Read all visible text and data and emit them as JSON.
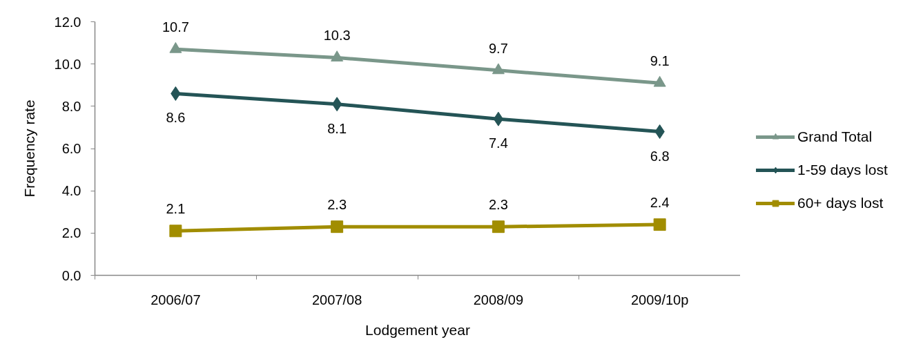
{
  "chart_data": {
    "type": "line",
    "xlabel": "Lodgement year",
    "ylabel": "Frequency rate",
    "categories": [
      "2006/07",
      "2007/08",
      "2008/09",
      "2009/10p"
    ],
    "series": [
      {
        "name": "Grand Total",
        "color": "#7a978a",
        "marker": "triangle",
        "values": [
          10.7,
          10.3,
          9.7,
          9.1
        ]
      },
      {
        "name": "1-59 days lost",
        "color": "#245456",
        "marker": "diamond",
        "values": [
          8.6,
          8.1,
          7.4,
          6.8
        ]
      },
      {
        "name": "60+ days lost",
        "color": "#a18d00",
        "marker": "square",
        "values": [
          2.1,
          2.3,
          2.3,
          2.4
        ]
      }
    ],
    "ylim": [
      0,
      12
    ],
    "yticks": [
      {
        "value": 0,
        "label": "0.0"
      },
      {
        "value": 2,
        "label": "2.0"
      },
      {
        "value": 4,
        "label": "4.0"
      },
      {
        "value": 6,
        "label": "6.0"
      },
      {
        "value": 8,
        "label": "8.0"
      },
      {
        "value": 10,
        "label": "10.0"
      },
      {
        "value": 12,
        "label": "12.0"
      }
    ],
    "data_labels": true,
    "grid": false,
    "legend": "right"
  }
}
